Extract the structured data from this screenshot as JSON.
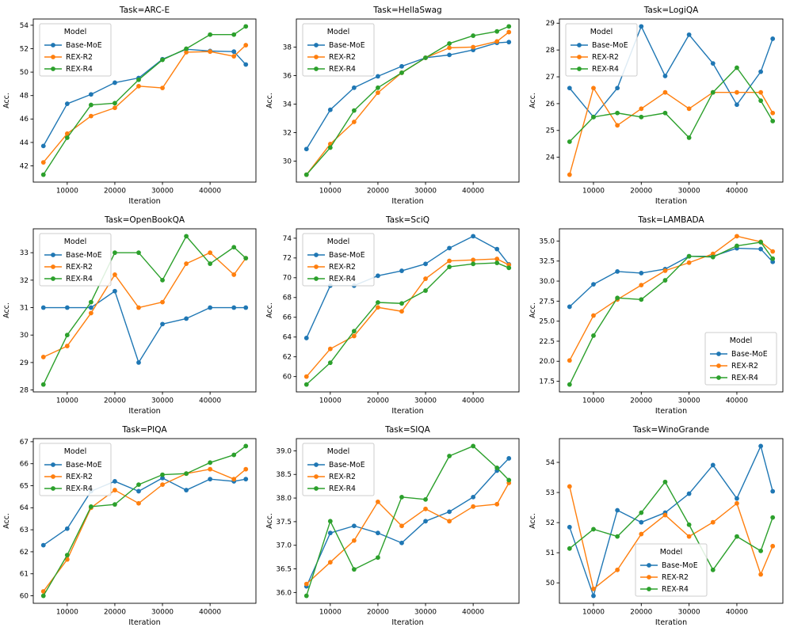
{
  "figure": {
    "background": "#ffffff",
    "text_color": "#000000",
    "spine_color": "#000000",
    "legend_border_color": "#cccccc"
  },
  "chart_data": [
    {
      "type": "line",
      "title": "Task=ARC-E",
      "xlabel": "Iteration",
      "ylabel": "Acc.",
      "x": [
        5000,
        10000,
        15000,
        20000,
        25000,
        30000,
        35000,
        40000,
        45000,
        47500
      ],
      "xticks": [
        10000,
        20000,
        30000,
        40000
      ],
      "xtick_labels": [
        "10000",
        "20000",
        "30000",
        "40000"
      ],
      "yticks": [
        42,
        44,
        46,
        48,
        50,
        52,
        54
      ],
      "ytick_labels": [
        "42",
        "44",
        "46",
        "48",
        "50",
        "52",
        "54"
      ],
      "legend": {
        "title": "Model",
        "position": "upper-left"
      },
      "series": [
        {
          "name": "Base-MoE",
          "color": "#1f77b4",
          "values": [
            43.7,
            47.3,
            48.1,
            49.1,
            49.5,
            51.1,
            51.95,
            51.8,
            51.75,
            50.65
          ]
        },
        {
          "name": "REX-R2",
          "color": "#ff7f0e",
          "values": [
            42.3,
            44.75,
            46.25,
            46.95,
            48.8,
            48.65,
            51.7,
            51.75,
            51.35,
            52.3
          ]
        },
        {
          "name": "REX-R4",
          "color": "#2ca02c",
          "values": [
            41.25,
            44.4,
            47.2,
            47.35,
            49.35,
            51.05,
            52.0,
            53.2,
            53.2,
            53.9
          ]
        }
      ]
    },
    {
      "type": "line",
      "title": "Task=HellaSwag",
      "xlabel": "Iteration",
      "ylabel": "Acc.",
      "x": [
        5000,
        10000,
        15000,
        20000,
        25000,
        30000,
        35000,
        40000,
        45000,
        47500
      ],
      "xticks": [
        10000,
        20000,
        30000,
        40000
      ],
      "xtick_labels": [
        "10000",
        "20000",
        "30000",
        "40000"
      ],
      "yticks": [
        30,
        32,
        34,
        36,
        38
      ],
      "ytick_labels": [
        "30",
        "32",
        "34",
        "36",
        "38"
      ],
      "legend": {
        "title": "Model",
        "position": "upper-left"
      },
      "series": [
        {
          "name": "Base-MoE",
          "color": "#1f77b4",
          "values": [
            30.85,
            33.6,
            35.15,
            35.95,
            36.65,
            37.25,
            37.45,
            37.8,
            38.3,
            38.35
          ]
        },
        {
          "name": "REX-R2",
          "color": "#ff7f0e",
          "values": [
            29.05,
            31.2,
            32.75,
            34.8,
            36.2,
            37.25,
            37.95,
            38.0,
            38.4,
            39.05
          ]
        },
        {
          "name": "REX-R4",
          "color": "#2ca02c",
          "values": [
            29.05,
            30.95,
            33.55,
            35.15,
            36.2,
            37.25,
            38.25,
            38.8,
            39.1,
            39.45
          ]
        }
      ]
    },
    {
      "type": "line",
      "title": "Task=LogiQA",
      "xlabel": "Iteration",
      "ylabel": "Acc.",
      "x": [
        5000,
        10000,
        15000,
        20000,
        25000,
        30000,
        35000,
        40000,
        45000,
        47500
      ],
      "xticks": [
        10000,
        20000,
        30000,
        40000
      ],
      "xtick_labels": [
        "10000",
        "20000",
        "30000",
        "40000"
      ],
      "yticks": [
        24,
        25,
        26,
        27,
        28,
        29
      ],
      "ytick_labels": [
        "24",
        "25",
        "26",
        "27",
        "28",
        "29"
      ],
      "legend": {
        "title": "Model",
        "position": "upper-left"
      },
      "series": [
        {
          "name": "Base-MoE",
          "color": "#1f77b4",
          "values": [
            26.58,
            25.5,
            26.58,
            28.88,
            27.03,
            28.57,
            27.5,
            25.96,
            27.19,
            28.42
          ]
        },
        {
          "name": "REX-R2",
          "color": "#ff7f0e",
          "values": [
            23.35,
            26.58,
            25.19,
            25.81,
            26.42,
            25.81,
            26.42,
            26.42,
            26.42,
            25.65
          ]
        },
        {
          "name": "REX-R4",
          "color": "#2ca02c",
          "values": [
            24.58,
            25.5,
            25.65,
            25.5,
            25.65,
            24.73,
            26.42,
            27.34,
            26.11,
            25.35
          ]
        }
      ]
    },
    {
      "type": "line",
      "title": "Task=OpenBookQA",
      "xlabel": "Iteration",
      "ylabel": "Acc.",
      "x": [
        5000,
        10000,
        15000,
        20000,
        25000,
        30000,
        35000,
        40000,
        45000,
        47500
      ],
      "xticks": [
        10000,
        20000,
        30000,
        40000
      ],
      "xtick_labels": [
        "10000",
        "20000",
        "30000",
        "40000"
      ],
      "yticks": [
        28,
        29,
        30,
        31,
        32,
        33
      ],
      "ytick_labels": [
        "28",
        "29",
        "30",
        "31",
        "32",
        "33"
      ],
      "legend": {
        "title": "Model",
        "position": "upper-left"
      },
      "series": [
        {
          "name": "Base-MoE",
          "color": "#1f77b4",
          "values": [
            31.0,
            31.0,
            31.0,
            31.6,
            29.0,
            30.4,
            30.6,
            31.0,
            31.0,
            31.0
          ]
        },
        {
          "name": "REX-R2",
          "color": "#ff7f0e",
          "values": [
            29.2,
            29.6,
            30.8,
            32.2,
            31.0,
            31.2,
            32.6,
            33.0,
            32.2,
            32.8
          ]
        },
        {
          "name": "REX-R4",
          "color": "#2ca02c",
          "values": [
            28.2,
            30.0,
            31.2,
            33.0,
            33.0,
            32.0,
            33.6,
            32.6,
            33.2,
            32.8
          ]
        }
      ]
    },
    {
      "type": "line",
      "title": "Task=SciQ",
      "xlabel": "Iteration",
      "ylabel": "Acc.",
      "x": [
        5000,
        10000,
        15000,
        20000,
        25000,
        30000,
        35000,
        40000,
        45000,
        47500
      ],
      "xticks": [
        10000,
        20000,
        30000,
        40000
      ],
      "xtick_labels": [
        "10000",
        "20000",
        "30000",
        "40000"
      ],
      "yticks": [
        60,
        62,
        64,
        66,
        68,
        70,
        72,
        74
      ],
      "ytick_labels": [
        "60",
        "62",
        "64",
        "66",
        "68",
        "70",
        "72",
        "74"
      ],
      "legend": {
        "title": "Model",
        "position": "upper-left"
      },
      "series": [
        {
          "name": "Base-MoE",
          "color": "#1f77b4",
          "values": [
            63.9,
            69.2,
            69.2,
            70.2,
            70.7,
            71.4,
            73.0,
            74.2,
            72.9,
            71.35
          ]
        },
        {
          "name": "REX-R2",
          "color": "#ff7f0e",
          "values": [
            60.0,
            62.8,
            64.1,
            67.0,
            66.6,
            69.9,
            71.7,
            71.8,
            71.9,
            71.3
          ]
        },
        {
          "name": "REX-R4",
          "color": "#2ca02c",
          "values": [
            59.2,
            61.4,
            64.6,
            67.5,
            67.4,
            68.7,
            71.1,
            71.4,
            71.5,
            71.0
          ]
        }
      ]
    },
    {
      "type": "line",
      "title": "Task=LAMBADA",
      "xlabel": "Iteration",
      "ylabel": "Acc.",
      "x": [
        5000,
        10000,
        15000,
        20000,
        25000,
        30000,
        35000,
        40000,
        45000,
        47500
      ],
      "xticks": [
        10000,
        20000,
        30000,
        40000
      ],
      "xtick_labels": [
        "10000",
        "20000",
        "30000",
        "40000"
      ],
      "yticks": [
        17.5,
        20.0,
        22.5,
        25.0,
        27.5,
        30.0,
        32.5,
        35.0
      ],
      "ytick_labels": [
        "17.5",
        "20.0",
        "22.5",
        "25.0",
        "27.5",
        "30.0",
        "32.5",
        "35.0"
      ],
      "legend": {
        "title": "Model",
        "position": "lower-right"
      },
      "series": [
        {
          "name": "Base-MoE",
          "color": "#1f77b4",
          "values": [
            26.8,
            29.6,
            31.2,
            31.0,
            31.5,
            33.1,
            33.1,
            34.1,
            34.0,
            32.4
          ]
        },
        {
          "name": "REX-R2",
          "color": "#ff7f0e",
          "values": [
            20.1,
            25.7,
            27.7,
            29.5,
            31.3,
            32.3,
            33.4,
            35.6,
            34.9,
            33.7
          ]
        },
        {
          "name": "REX-R4",
          "color": "#2ca02c",
          "values": [
            17.1,
            23.2,
            27.9,
            27.7,
            30.1,
            33.1,
            33.0,
            34.4,
            34.85,
            32.8
          ]
        }
      ]
    },
    {
      "type": "line",
      "title": "Task=PIQA",
      "xlabel": "Iteration",
      "ylabel": "Acc.",
      "x": [
        5000,
        10000,
        15000,
        20000,
        25000,
        30000,
        35000,
        40000,
        45000,
        47500
      ],
      "xticks": [
        10000,
        20000,
        30000,
        40000
      ],
      "xtick_labels": [
        "10000",
        "20000",
        "30000",
        "40000"
      ],
      "yticks": [
        60,
        61,
        62,
        63,
        64,
        65,
        66,
        67
      ],
      "ytick_labels": [
        "60",
        "61",
        "62",
        "63",
        "64",
        "65",
        "66",
        "67"
      ],
      "legend": {
        "title": "Model",
        "position": "upper-left"
      },
      "series": [
        {
          "name": "Base-MoE",
          "color": "#1f77b4",
          "values": [
            62.3,
            63.05,
            64.75,
            65.2,
            64.75,
            65.35,
            64.8,
            65.3,
            65.2,
            65.3
          ]
        },
        {
          "name": "REX-R2",
          "color": "#ff7f0e",
          "values": [
            60.2,
            61.65,
            64.0,
            64.8,
            64.2,
            65.05,
            65.55,
            65.75,
            65.3,
            65.75
          ]
        },
        {
          "name": "REX-R4",
          "color": "#2ca02c",
          "values": [
            60.0,
            61.85,
            64.05,
            64.15,
            65.05,
            65.5,
            65.55,
            66.05,
            66.4,
            66.8
          ]
        }
      ]
    },
    {
      "type": "line",
      "title": "Task=SIQA",
      "xlabel": "Iteration",
      "ylabel": "Acc.",
      "x": [
        5000,
        10000,
        15000,
        20000,
        25000,
        30000,
        35000,
        40000,
        45000,
        47500
      ],
      "xticks": [
        10000,
        20000,
        30000,
        40000
      ],
      "xtick_labels": [
        "10000",
        "20000",
        "30000",
        "40000"
      ],
      "yticks": [
        36.0,
        36.5,
        37.0,
        37.5,
        38.0,
        38.5,
        39.0
      ],
      "ytick_labels": [
        "36.0",
        "36.5",
        "37.0",
        "37.5",
        "38.0",
        "38.5",
        "39.0"
      ],
      "legend": {
        "title": "Model",
        "position": "upper-left"
      },
      "series": [
        {
          "name": "Base-MoE",
          "color": "#1f77b4",
          "values": [
            36.13,
            37.26,
            37.41,
            37.26,
            37.05,
            37.51,
            37.71,
            38.02,
            38.58,
            38.84
          ]
        },
        {
          "name": "REX-R2",
          "color": "#ff7f0e",
          "values": [
            36.18,
            36.64,
            37.1,
            37.92,
            37.41,
            37.77,
            37.51,
            37.82,
            37.87,
            38.32
          ]
        },
        {
          "name": "REX-R4",
          "color": "#2ca02c",
          "values": [
            35.93,
            37.51,
            36.49,
            36.74,
            38.02,
            37.97,
            38.89,
            39.1,
            38.64,
            38.38
          ]
        }
      ]
    },
    {
      "type": "line",
      "title": "Task=WinoGrande",
      "xlabel": "Iteration",
      "ylabel": "Acc.",
      "x": [
        5000,
        10000,
        15000,
        20000,
        25000,
        30000,
        35000,
        40000,
        45000,
        47500
      ],
      "xticks": [
        10000,
        20000,
        30000,
        40000
      ],
      "xtick_labels": [
        "10000",
        "20000",
        "30000",
        "40000"
      ],
      "yticks": [
        50,
        51,
        52,
        53,
        54
      ],
      "ytick_labels": [
        "50",
        "51",
        "52",
        "53",
        "54"
      ],
      "legend": {
        "title": "Model",
        "position": "lower-center"
      },
      "series": [
        {
          "name": "Base-MoE",
          "color": "#1f77b4",
          "values": [
            51.85,
            49.57,
            52.41,
            52.01,
            52.33,
            52.96,
            53.91,
            52.8,
            54.54,
            53.04
          ]
        },
        {
          "name": "REX-R2",
          "color": "#ff7f0e",
          "values": [
            53.2,
            49.8,
            50.43,
            51.62,
            52.25,
            51.54,
            52.01,
            52.64,
            50.28,
            51.22
          ]
        },
        {
          "name": "REX-R4",
          "color": "#2ca02c",
          "values": [
            51.14,
            51.78,
            51.54,
            52.33,
            53.35,
            51.93,
            50.43,
            51.54,
            51.06,
            52.17
          ]
        }
      ]
    }
  ]
}
